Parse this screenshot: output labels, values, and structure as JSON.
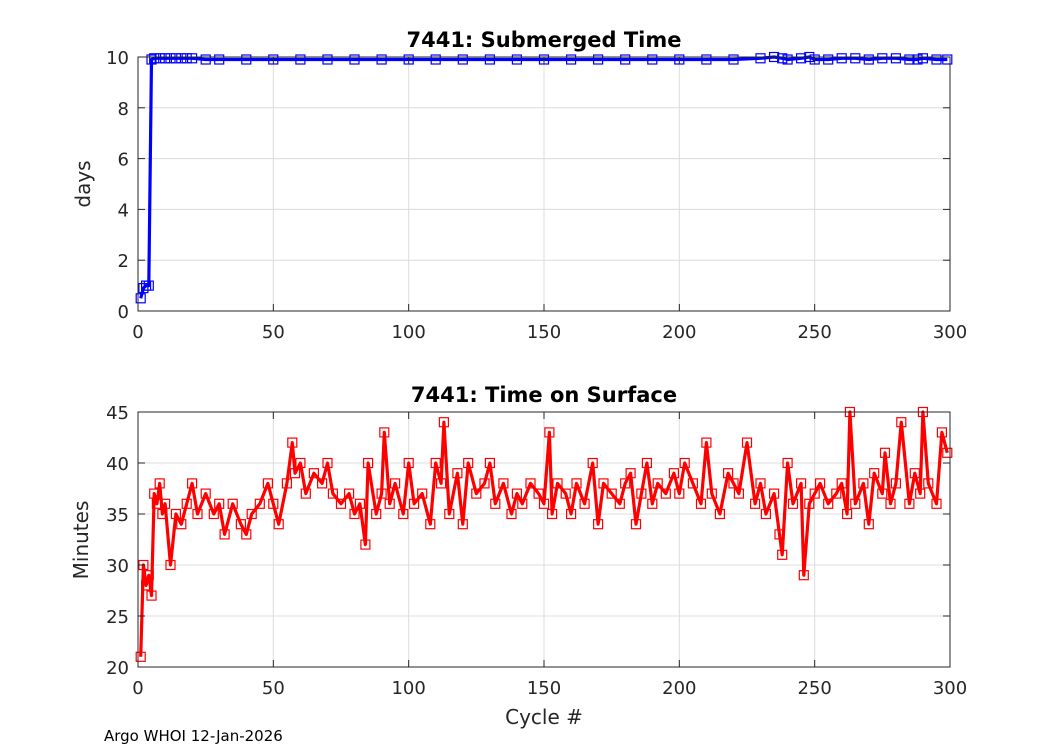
{
  "chart_data": [
    {
      "type": "line",
      "title": "7441: Submerged Time",
      "xlabel": "",
      "ylabel": "days",
      "xlim": [
        0,
        300
      ],
      "ylim": [
        0,
        10
      ],
      "xticks": [
        0,
        50,
        100,
        150,
        200,
        250,
        300
      ],
      "yticks": [
        0,
        2,
        4,
        6,
        8,
        10
      ],
      "grid": true,
      "color": "#0000ff",
      "marker": "square",
      "series": [
        {
          "name": "Submerged Time",
          "x": [
            1,
            2,
            3,
            4,
            5,
            6,
            8,
            10,
            12,
            14,
            16,
            18,
            20,
            25,
            30,
            40,
            50,
            60,
            70,
            80,
            90,
            100,
            110,
            120,
            130,
            140,
            150,
            160,
            170,
            180,
            190,
            200,
            210,
            220,
            230,
            235,
            238,
            240,
            245,
            248,
            250,
            255,
            260,
            265,
            270,
            275,
            280,
            285,
            288,
            290,
            295,
            299
          ],
          "y": [
            0.5,
            0.9,
            1.0,
            1.0,
            9.9,
            9.95,
            9.95,
            9.95,
            9.95,
            9.95,
            9.95,
            9.95,
            9.95,
            9.9,
            9.9,
            9.9,
            9.9,
            9.9,
            9.9,
            9.9,
            9.9,
            9.9,
            9.9,
            9.9,
            9.9,
            9.9,
            9.9,
            9.9,
            9.9,
            9.9,
            9.9,
            9.9,
            9.9,
            9.9,
            9.95,
            10.0,
            9.95,
            9.9,
            9.95,
            10.0,
            9.9,
            9.9,
            9.95,
            9.95,
            9.9,
            9.95,
            9.95,
            9.9,
            9.9,
            9.95,
            9.9,
            9.9
          ]
        }
      ]
    },
    {
      "type": "line",
      "title": "7441: Time on Surface",
      "xlabel": "Cycle #",
      "ylabel": "Minutes",
      "xlim": [
        0,
        300
      ],
      "ylim": [
        20,
        45
      ],
      "xticks": [
        0,
        50,
        100,
        150,
        200,
        250,
        300
      ],
      "yticks": [
        20,
        25,
        30,
        35,
        40,
        45
      ],
      "grid": true,
      "color": "#ff0000",
      "marker": "square",
      "series": [
        {
          "name": "Time on Surface",
          "x": [
            1,
            2,
            3,
            4,
            5,
            6,
            7,
            8,
            9,
            10,
            12,
            14,
            16,
            18,
            20,
            22,
            25,
            28,
            30,
            32,
            35,
            38,
            40,
            42,
            45,
            48,
            50,
            52,
            55,
            57,
            58,
            60,
            62,
            65,
            68,
            70,
            72,
            75,
            78,
            80,
            82,
            84,
            85,
            88,
            90,
            91,
            93,
            95,
            98,
            100,
            102,
            105,
            108,
            110,
            112,
            113,
            115,
            118,
            120,
            122,
            125,
            128,
            130,
            132,
            135,
            138,
            140,
            142,
            145,
            148,
            150,
            152,
            153,
            155,
            158,
            160,
            162,
            165,
            168,
            170,
            172,
            175,
            178,
            180,
            182,
            184,
            186,
            188,
            190,
            192,
            195,
            198,
            200,
            202,
            205,
            208,
            210,
            212,
            215,
            218,
            220,
            222,
            225,
            228,
            230,
            232,
            235,
            237,
            238,
            240,
            242,
            245,
            246,
            248,
            250,
            252,
            255,
            258,
            260,
            262,
            263,
            265,
            268,
            270,
            272,
            275,
            276,
            278,
            280,
            282,
            285,
            287,
            289,
            290,
            292,
            295,
            297,
            299
          ],
          "y": [
            21,
            30,
            28,
            29,
            27,
            37,
            36,
            38,
            35,
            36,
            30,
            35,
            34,
            36,
            38,
            35,
            37,
            35,
            36,
            33,
            36,
            34,
            33,
            35,
            36,
            38,
            36,
            34,
            38,
            42,
            39,
            40,
            37,
            39,
            38,
            40,
            37,
            36,
            37,
            35,
            36,
            32,
            40,
            35,
            37,
            43,
            36,
            38,
            35,
            40,
            36,
            37,
            34,
            40,
            38,
            44,
            35,
            39,
            34,
            40,
            37,
            38,
            40,
            36,
            38,
            35,
            37,
            36,
            38,
            37,
            36,
            43,
            35,
            38,
            37,
            35,
            38,
            36,
            40,
            34,
            38,
            37,
            36,
            38,
            39,
            34,
            37,
            40,
            36,
            38,
            37,
            39,
            37,
            40,
            38,
            36,
            42,
            37,
            35,
            39,
            38,
            37,
            42,
            36,
            38,
            35,
            37,
            33,
            31,
            40,
            36,
            38,
            29,
            36,
            37,
            38,
            36,
            37,
            38,
            35,
            45,
            36,
            38,
            34,
            39,
            37,
            41,
            36,
            38,
            44,
            36,
            39,
            37,
            45,
            38,
            36,
            43,
            41
          ]
        }
      ]
    }
  ],
  "footer": "Argo WHOI 12-Jan-2026"
}
